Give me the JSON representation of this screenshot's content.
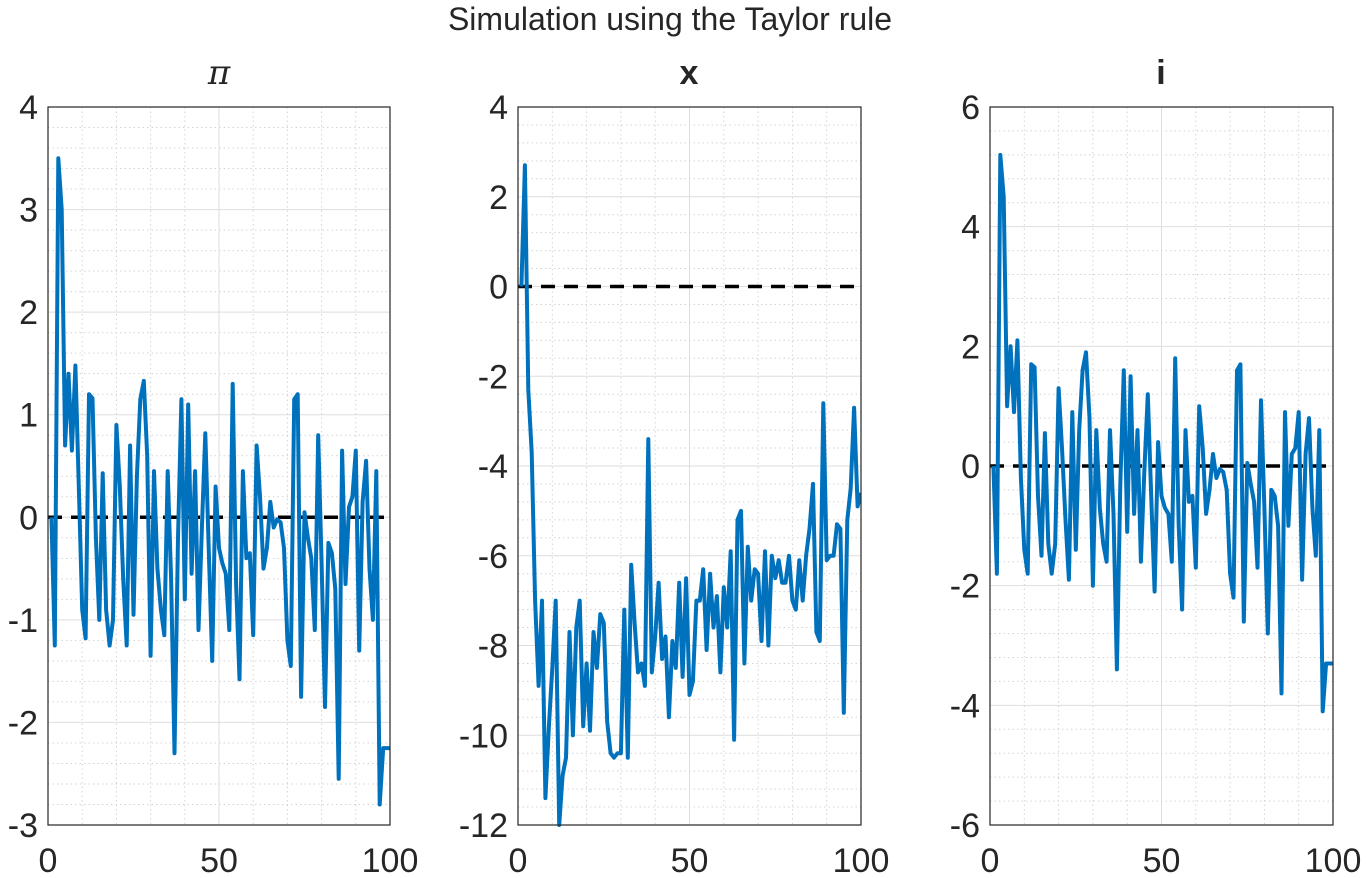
{
  "figure": {
    "title": "Simulation using the Taylor rule",
    "series_color": "#0072BD",
    "reference_color": "#000000"
  },
  "chart_data": [
    {
      "type": "line",
      "title": "π",
      "title_style": "italic",
      "xlim": [
        0,
        100
      ],
      "ylim": [
        -3,
        4
      ],
      "xticks": [
        0,
        50,
        100
      ],
      "yticks": [
        -3,
        -2,
        -1,
        0,
        1,
        2,
        3,
        4
      ],
      "grid": true,
      "reference_line": {
        "y": 0,
        "style": "dashed"
      },
      "x": [
        1,
        2,
        3,
        4,
        5,
        6,
        7,
        8,
        9,
        10,
        11,
        12,
        13,
        14,
        15,
        16,
        17,
        18,
        19,
        20,
        21,
        22,
        23,
        24,
        25,
        26,
        27,
        28,
        29,
        30,
        31,
        32,
        33,
        34,
        35,
        36,
        37,
        38,
        39,
        40,
        41,
        42,
        43,
        44,
        45,
        46,
        47,
        48,
        49,
        50,
        51,
        52,
        53,
        54,
        55,
        56,
        57,
        58,
        59,
        60,
        61,
        62,
        63,
        64,
        65,
        66,
        67,
        68,
        69,
        70,
        71,
        72,
        73,
        74,
        75,
        76,
        77,
        78,
        79,
        80,
        81,
        82,
        83,
        84,
        85,
        86,
        87,
        88,
        89,
        90,
        91,
        92,
        93,
        94,
        95,
        96,
        97,
        98,
        99,
        100
      ],
      "y": [
        0.0,
        -1.25,
        3.5,
        3.0,
        0.7,
        1.4,
        0.65,
        1.48,
        0.3,
        -0.9,
        -1.18,
        1.2,
        1.16,
        -0.2,
        -1.0,
        0.43,
        -0.9,
        -1.25,
        -1.0,
        0.9,
        0.3,
        -0.6,
        -1.25,
        0.7,
        -0.95,
        0.4,
        1.15,
        1.33,
        0.6,
        -1.35,
        0.45,
        -0.5,
        -0.9,
        -1.15,
        0.45,
        -0.6,
        -2.3,
        -0.2,
        1.15,
        -0.8,
        1.1,
        -0.55,
        0.45,
        -1.1,
        -0.1,
        0.82,
        -0.3,
        -1.4,
        0.3,
        -0.3,
        -0.45,
        -0.55,
        -1.1,
        1.3,
        -0.65,
        -1.58,
        0.45,
        -0.4,
        -0.35,
        -1.15,
        0.7,
        0.2,
        -0.5,
        -0.3,
        0.15,
        -0.1,
        -0.02,
        -0.05,
        -0.3,
        -1.2,
        -1.45,
        1.15,
        1.2,
        -1.75,
        0.05,
        -0.2,
        -0.4,
        -1.1,
        0.8,
        -0.45,
        -1.85,
        -0.25,
        -0.35,
        -0.7,
        -2.55,
        0.65,
        -0.65,
        0.1,
        0.2,
        0.65,
        -1.3,
        0.15,
        0.55,
        -0.5,
        -1.0,
        0.45,
        -2.8,
        -2.25,
        -2.25,
        -2.25
      ]
    },
    {
      "type": "line",
      "title": "x",
      "xlim": [
        0,
        100
      ],
      "ylim": [
        -12,
        4
      ],
      "xticks": [
        0,
        50,
        100
      ],
      "yticks": [
        -12,
        -10,
        -8,
        -6,
        -4,
        -2,
        0,
        2,
        4
      ],
      "grid": true,
      "reference_line": {
        "y": 0,
        "style": "dashed"
      },
      "x": [
        1,
        2,
        3,
        4,
        5,
        6,
        7,
        8,
        9,
        10,
        11,
        12,
        13,
        14,
        15,
        16,
        17,
        18,
        19,
        20,
        21,
        22,
        23,
        24,
        25,
        26,
        27,
        28,
        29,
        30,
        31,
        32,
        33,
        34,
        35,
        36,
        37,
        38,
        39,
        40,
        41,
        42,
        43,
        44,
        45,
        46,
        47,
        48,
        49,
        50,
        51,
        52,
        53,
        54,
        55,
        56,
        57,
        58,
        59,
        60,
        61,
        62,
        63,
        64,
        65,
        66,
        67,
        68,
        69,
        70,
        71,
        72,
        73,
        74,
        75,
        76,
        77,
        78,
        79,
        80,
        81,
        82,
        83,
        84,
        85,
        86,
        87,
        88,
        89,
        90,
        91,
        92,
        93,
        94,
        95,
        96,
        97,
        98,
        99,
        100
      ],
      "y": [
        0.0,
        2.7,
        -2.3,
        -3.7,
        -7.0,
        -8.9,
        -7.0,
        -11.4,
        -9.8,
        -8.5,
        -7.0,
        -12.0,
        -10.9,
        -10.5,
        -7.7,
        -10.0,
        -7.6,
        -7.0,
        -9.8,
        -8.4,
        -9.9,
        -7.7,
        -8.5,
        -7.3,
        -7.5,
        -9.7,
        -10.4,
        -10.5,
        -10.4,
        -10.4,
        -7.2,
        -10.5,
        -6.2,
        -7.5,
        -8.6,
        -8.4,
        -8.9,
        -3.4,
        -8.6,
        -7.8,
        -6.6,
        -8.3,
        -7.8,
        -9.6,
        -7.9,
        -8.5,
        -6.6,
        -8.7,
        -6.5,
        -9.1,
        -8.8,
        -7.0,
        -7.0,
        -6.3,
        -8.1,
        -6.4,
        -7.6,
        -6.9,
        -8.6,
        -6.7,
        -7.6,
        -5.9,
        -10.1,
        -5.2,
        -5.0,
        -8.4,
        -5.8,
        -7.0,
        -6.3,
        -6.4,
        -7.9,
        -5.9,
        -8.0,
        -6.0,
        -6.5,
        -6.1,
        -6.6,
        -6.6,
        -6.0,
        -7.0,
        -7.2,
        -6.1,
        -7.0,
        -6.0,
        -5.4,
        -4.4,
        -7.7,
        -7.9,
        -2.6,
        -6.1,
        -6.0,
        -6.0,
        -5.3,
        -5.4,
        -9.5,
        -5.2,
        -4.5,
        -2.7,
        -4.9,
        -4.6
      ]
    },
    {
      "type": "line",
      "title": "i",
      "xlim": [
        0,
        100
      ],
      "ylim": [
        -6,
        6
      ],
      "xticks": [
        0,
        50,
        100
      ],
      "yticks": [
        -6,
        -4,
        -2,
        0,
        2,
        4,
        6
      ],
      "grid": true,
      "reference_line": {
        "y": 0,
        "style": "dashed"
      },
      "x": [
        1,
        2,
        3,
        4,
        5,
        6,
        7,
        8,
        9,
        10,
        11,
        12,
        13,
        14,
        15,
        16,
        17,
        18,
        19,
        20,
        21,
        22,
        23,
        24,
        25,
        26,
        27,
        28,
        29,
        30,
        31,
        32,
        33,
        34,
        35,
        36,
        37,
        38,
        39,
        40,
        41,
        42,
        43,
        44,
        45,
        46,
        47,
        48,
        49,
        50,
        51,
        52,
        53,
        54,
        55,
        56,
        57,
        58,
        59,
        60,
        61,
        62,
        63,
        64,
        65,
        66,
        67,
        68,
        69,
        70,
        71,
        72,
        73,
        74,
        75,
        76,
        77,
        78,
        79,
        80,
        81,
        82,
        83,
        84,
        85,
        86,
        87,
        88,
        89,
        90,
        91,
        92,
        93,
        94,
        95,
        96,
        97,
        98,
        99,
        100
      ],
      "y": [
        0.0,
        -1.8,
        5.2,
        4.5,
        1.0,
        2.0,
        0.9,
        2.1,
        -0.2,
        -1.4,
        -1.8,
        1.7,
        1.65,
        -0.5,
        -1.5,
        0.55,
        -1.3,
        -1.8,
        -1.3,
        1.3,
        0.3,
        -0.9,
        -1.9,
        0.9,
        -1.4,
        0.6,
        1.6,
        1.9,
        0.8,
        -2.0,
        0.6,
        -0.7,
        -1.3,
        -1.6,
        0.6,
        -0.8,
        -3.4,
        -0.3,
        1.6,
        -1.1,
        1.5,
        -0.8,
        0.6,
        -1.6,
        -0.1,
        1.2,
        -0.5,
        -2.1,
        0.4,
        -0.5,
        -0.7,
        -0.8,
        -1.6,
        1.8,
        -1.0,
        -2.4,
        0.6,
        -0.6,
        -0.5,
        -1.7,
        1.0,
        0.3,
        -0.8,
        -0.4,
        0.2,
        -0.2,
        -0.05,
        -0.1,
        -0.4,
        -1.8,
        -2.2,
        1.6,
        1.7,
        -2.6,
        0.05,
        -0.3,
        -0.6,
        -1.7,
        1.1,
        -0.7,
        -2.8,
        -0.4,
        -0.5,
        -1.0,
        -3.8,
        0.9,
        -1.0,
        0.2,
        0.3,
        0.9,
        -1.9,
        0.2,
        0.8,
        -0.7,
        -1.5,
        0.6,
        -4.1,
        -3.3,
        -3.3,
        -3.3
      ]
    }
  ]
}
